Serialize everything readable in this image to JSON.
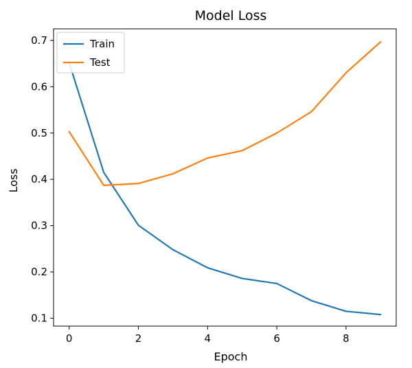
{
  "chart_data": {
    "type": "line",
    "title": "Model Loss",
    "xlabel": "Epoch",
    "ylabel": "Loss",
    "x": [
      0,
      1,
      2,
      3,
      4,
      5,
      6,
      7,
      8,
      9
    ],
    "xlim": [
      -0.45,
      9.45
    ],
    "ylim": [
      0.083,
      0.725
    ],
    "xticks": [
      0,
      2,
      4,
      6,
      8
    ],
    "yticks": [
      0.1,
      0.2,
      0.3,
      0.4,
      0.5,
      0.6,
      0.7
    ],
    "grid": false,
    "legend_position": "top-left",
    "series": [
      {
        "name": "Train",
        "color": "#1f77b4",
        "values": [
          0.652,
          0.415,
          0.301,
          0.248,
          0.209,
          0.186,
          0.175,
          0.138,
          0.115,
          0.108
        ]
      },
      {
        "name": "Test",
        "color": "#ff7f0e",
        "values": [
          0.503,
          0.387,
          0.391,
          0.412,
          0.446,
          0.462,
          0.5,
          0.546,
          0.63,
          0.697
        ]
      }
    ]
  }
}
